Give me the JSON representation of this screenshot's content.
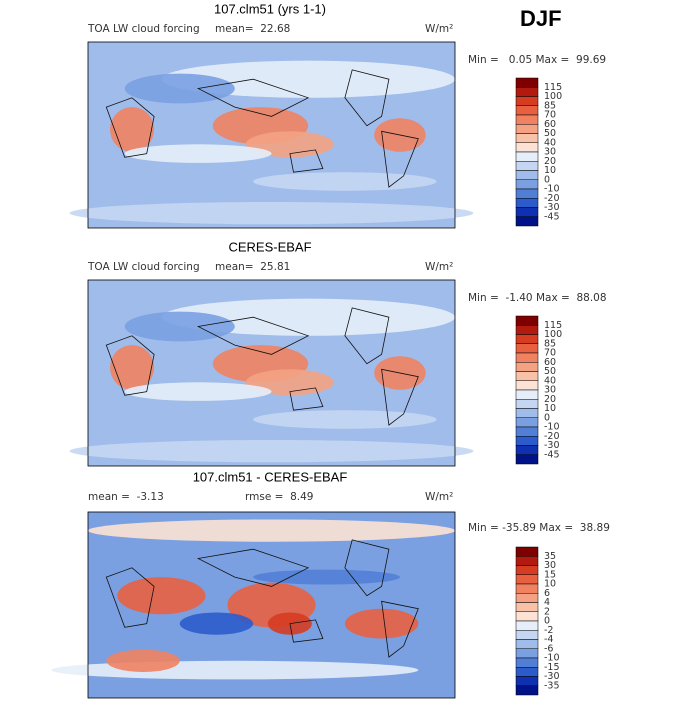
{
  "season": "DJF",
  "panels": [
    {
      "title": "107.clm51 (yrs 1-1)",
      "left_label": "TOA LW cloud forcing",
      "mean": "mean=  22.68",
      "units": "W/m²",
      "minmax": "Min =   0.05 Max =  99.69",
      "colorbar": {
        "levels": [
          115,
          100,
          85,
          70,
          60,
          50,
          40,
          30,
          20,
          10,
          0,
          -10,
          -20,
          -30,
          -45
        ],
        "colors": [
          "#7f0000",
          "#b21a10",
          "#d63c22",
          "#e86040",
          "#f08262",
          "#f4a283",
          "#f8c2a8",
          "#fce2d4",
          "#e6eefa",
          "#c4d6f2",
          "#a0bceb",
          "#7aa0e2",
          "#527fd6",
          "#2c5ccb",
          "#0f30b0",
          "#001288"
        ]
      }
    },
    {
      "title": "CERES-EBAF",
      "left_label": "TOA LW cloud forcing",
      "mean": "mean=  25.81",
      "units": "W/m²",
      "minmax": "Min =  -1.40 Max =  88.08",
      "colorbar": {
        "levels": [
          115,
          100,
          85,
          70,
          60,
          50,
          40,
          30,
          20,
          10,
          0,
          -10,
          -20,
          -30,
          -45
        ],
        "colors": [
          "#7f0000",
          "#b21a10",
          "#d63c22",
          "#e86040",
          "#f08262",
          "#f4a283",
          "#f8c2a8",
          "#fce2d4",
          "#e6eefa",
          "#c4d6f2",
          "#a0bceb",
          "#7aa0e2",
          "#527fd6",
          "#2c5ccb",
          "#0f30b0",
          "#001288"
        ]
      }
    },
    {
      "title": "107.clm51 - CERES-EBAF",
      "mean": "mean =  -3.13",
      "rmse": "rmse =  8.49",
      "units": "W/m²",
      "minmax": "Min = -35.89 Max =  38.89",
      "colorbar": {
        "levels": [
          35,
          30,
          15,
          10,
          6,
          4,
          2,
          0,
          -2,
          -4,
          -6,
          -10,
          -15,
          -30,
          -35
        ],
        "colors": [
          "#7f0000",
          "#b21a10",
          "#d63c22",
          "#e86040",
          "#f08262",
          "#f4a283",
          "#f8c2a8",
          "#fce2d4",
          "#e6eefa",
          "#c4d6f2",
          "#a0bceb",
          "#7aa0e2",
          "#527fd6",
          "#2c5ccb",
          "#0f30b0",
          "#001288"
        ]
      }
    }
  ]
}
